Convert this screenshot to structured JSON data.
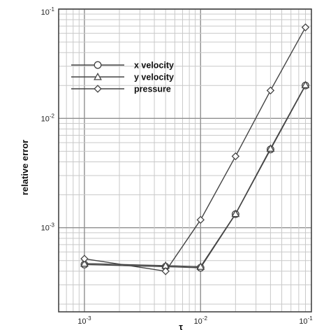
{
  "chart_data": {
    "type": "line",
    "xscale": "log",
    "yscale": "log",
    "xlim": [
      0.0006,
      0.09
    ],
    "ylim": [
      0.00017,
      0.1
    ],
    "xlabel": "τ",
    "ylabel": "relative error",
    "grid": true,
    "legend_position": "top-left",
    "x_ticks": [
      {
        "value": 0.001,
        "base": "10",
        "exp": "-3"
      },
      {
        "value": 0.01,
        "base": "10",
        "exp": "-2"
      },
      {
        "value": 0.1,
        "base": "10",
        "exp": "-1"
      }
    ],
    "y_ticks": [
      {
        "value": 0.001,
        "base": "10",
        "exp": "-3"
      },
      {
        "value": 0.01,
        "base": "10",
        "exp": "-2"
      },
      {
        "value": 0.1,
        "base": "10",
        "exp": "-1"
      }
    ],
    "series": [
      {
        "name": "x velocity",
        "marker": "circle",
        "x": [
          0.001,
          0.005,
          0.01,
          0.02,
          0.04,
          0.08
        ],
        "y": [
          0.00046,
          0.00044,
          0.00043,
          0.00133,
          0.0052,
          0.02
        ]
      },
      {
        "name": "y velocity",
        "marker": "triangle",
        "x": [
          0.001,
          0.005,
          0.01,
          0.02,
          0.04,
          0.08
        ],
        "y": [
          0.00047,
          0.00045,
          0.00044,
          0.00134,
          0.0053,
          0.0202
        ]
      },
      {
        "name": "pressure",
        "marker": "diamond",
        "x": [
          0.001,
          0.005,
          0.01,
          0.02,
          0.04,
          0.08
        ],
        "y": [
          0.00052,
          0.0004,
          0.00118,
          0.0045,
          0.018,
          0.068
        ]
      }
    ]
  }
}
